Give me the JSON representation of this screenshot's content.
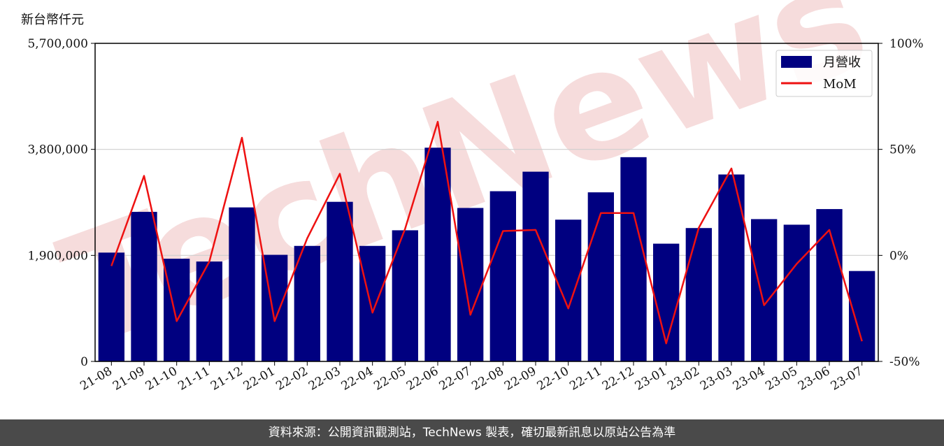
{
  "chart_data": {
    "type": "bar+line",
    "y_left_label": "新台幣仟元",
    "y_left_ticks": [
      "5,700,000",
      "3,800,000",
      "1,900,000",
      "0"
    ],
    "y_left_range": [
      0,
      5700000
    ],
    "y_right_ticks": [
      "100%",
      "50%",
      "0%",
      "-50%"
    ],
    "y_right_range": [
      -50,
      100
    ],
    "grid": "horizontal",
    "legend_position": "top-right",
    "categories": [
      "21-08",
      "21-09",
      "21-10",
      "21-11",
      "21-12",
      "22-01",
      "22-02",
      "22-03",
      "22-04",
      "22-05",
      "22-06",
      "22-07",
      "22-08",
      "22-09",
      "22-10",
      "22-11",
      "22-12",
      "23-01",
      "23-02",
      "23-03",
      "23-04",
      "23-05",
      "23-06",
      "23-07"
    ],
    "series": [
      {
        "name": "月營收",
        "type": "bar",
        "axis": "left",
        "color": "#000080",
        "values": [
          1950000,
          2680000,
          1840000,
          1790000,
          2760000,
          1910000,
          2070000,
          2860000,
          2070000,
          2350000,
          3830000,
          2750000,
          3050000,
          3400000,
          2540000,
          3030000,
          3660000,
          2110000,
          2390000,
          3350000,
          2550000,
          2450000,
          2730000,
          1620000
        ]
      },
      {
        "name": "MoM",
        "type": "line",
        "axis": "right",
        "color": "#ee1111",
        "values": [
          -5,
          37.5,
          -31,
          -3,
          55.5,
          -31,
          8,
          38.5,
          -27,
          12.5,
          63,
          -28,
          11.5,
          12,
          -25,
          20,
          20,
          -41.5,
          13,
          41,
          -23.5,
          -4,
          12,
          -40.5
        ]
      }
    ]
  },
  "watermark": "TechNews",
  "footer": {
    "text": "資料來源：公開資訊觀測站，TechNews 製表，確切最新訊息以原站公告為準"
  }
}
